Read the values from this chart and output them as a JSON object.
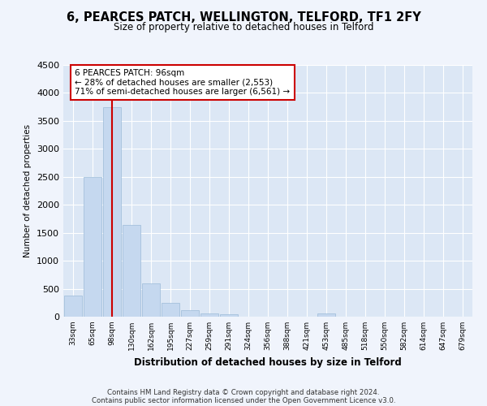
{
  "title1": "6, PEARCES PATCH, WELLINGTON, TELFORD, TF1 2FY",
  "title2": "Size of property relative to detached houses in Telford",
  "xlabel": "Distribution of detached houses by size in Telford",
  "ylabel": "Number of detached properties",
  "footer1": "Contains HM Land Registry data © Crown copyright and database right 2024.",
  "footer2": "Contains public sector information licensed under the Open Government Licence v3.0.",
  "categories": [
    "33sqm",
    "65sqm",
    "98sqm",
    "130sqm",
    "162sqm",
    "195sqm",
    "227sqm",
    "259sqm",
    "291sqm",
    "324sqm",
    "356sqm",
    "388sqm",
    "421sqm",
    "453sqm",
    "485sqm",
    "518sqm",
    "550sqm",
    "582sqm",
    "614sqm",
    "647sqm",
    "679sqm"
  ],
  "values": [
    380,
    2500,
    3750,
    1640,
    595,
    240,
    110,
    65,
    50,
    0,
    0,
    0,
    0,
    60,
    0,
    0,
    0,
    0,
    0,
    0,
    0
  ],
  "bar_color": "#c5d8ef",
  "bar_edge_color": "#9bbbd8",
  "vline_x": 2,
  "vline_color": "#cc0000",
  "ylim": [
    0,
    4500
  ],
  "annotation_text": "6 PEARCES PATCH: 96sqm\n← 28% of detached houses are smaller (2,553)\n71% of semi-detached houses are larger (6,561) →",
  "annotation_box_color": "#cc0000",
  "background_color": "#f0f4fc",
  "plot_bg_color": "#dce7f5",
  "grid_color": "#ffffff"
}
